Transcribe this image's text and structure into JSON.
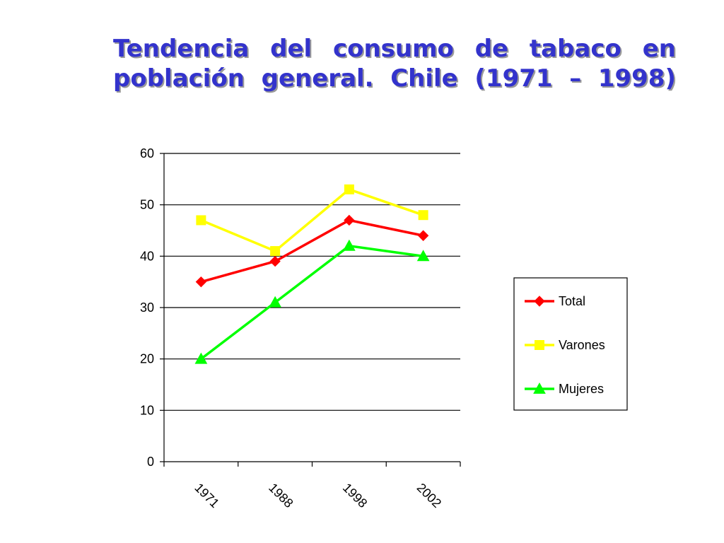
{
  "title": {
    "line1": "Tendencia del consumo de tabaco en",
    "line2": "población  general. Chile (1971 – 1998)"
  },
  "chart_data": {
    "type": "line",
    "categories": [
      "1971",
      "1988",
      "1998",
      "2002"
    ],
    "ylim": [
      0,
      60
    ],
    "yticks": [
      0,
      10,
      20,
      30,
      40,
      50,
      60
    ],
    "grid": true,
    "legend_position": "right",
    "series": [
      {
        "name": "Total",
        "values": [
          35,
          39,
          47,
          44
        ],
        "color": "#ff0000",
        "marker": "diamond"
      },
      {
        "name": "Varones",
        "values": [
          47,
          41,
          53,
          48
        ],
        "color": "#ffff00",
        "marker": "square"
      },
      {
        "name": "Mujeres",
        "values": [
          20,
          31,
          42,
          40
        ],
        "color": "#00ff00",
        "marker": "triangle"
      }
    ]
  }
}
